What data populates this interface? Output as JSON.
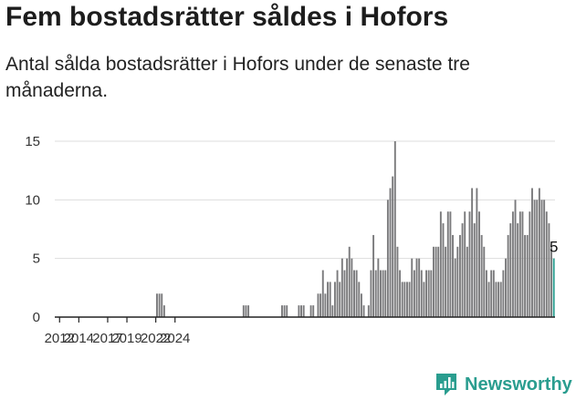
{
  "header": {
    "title": "Fem bostadsrätter såldes i Hofors",
    "subtitle": "Antal sålda bostadsrätter i Hofors under de senaste tre månaderna."
  },
  "brand": {
    "name": "Newsworthy",
    "logo_icon": "newsworthy-chart-icon"
  },
  "colors": {
    "bar": "#7a7a7c",
    "highlight": "#2a9d8f",
    "grid": "#dddddd",
    "axis": "#222222"
  },
  "chart_data": {
    "type": "bar",
    "title": "Fem bostadsrätter såldes i Hofors",
    "subtitle": "Antal sålda bostadsrätter i Hofors under de senaste tre månaderna.",
    "xlabel": "",
    "ylabel": "",
    "x_start": 2011.5,
    "x_step": 0.25,
    "x_tick_labels": [
      "2012",
      "2014",
      "2017",
      "2019",
      "2022",
      "2024"
    ],
    "x_tick_values": [
      2012,
      2014,
      2017,
      2019,
      2022,
      2024
    ],
    "y_ticks": [
      0,
      5,
      10,
      15
    ],
    "ylim": [
      0,
      15
    ],
    "grid": true,
    "legend": "none",
    "values": [
      0,
      0,
      0,
      0,
      0,
      0,
      0,
      0,
      0,
      0,
      0,
      0,
      0,
      0,
      0,
      0,
      0,
      0,
      0,
      0,
      0,
      0,
      0,
      0,
      0,
      0,
      0,
      0,
      0,
      0,
      0,
      0,
      0,
      0,
      0,
      0,
      0,
      0,
      0,
      0,
      0,
      0,
      2,
      2,
      2,
      1,
      0,
      0,
      0,
      0,
      0,
      0,
      0,
      0,
      0,
      0,
      0,
      0,
      0,
      0,
      0,
      0,
      0,
      0,
      0,
      0,
      0,
      0,
      0,
      0,
      0,
      0,
      0,
      0,
      0,
      0,
      0,
      0,
      1,
      1,
      1,
      0,
      0,
      0,
      0,
      0,
      0,
      0,
      0,
      0,
      0,
      0,
      0,
      0,
      1,
      1,
      1,
      0,
      0,
      0,
      0,
      1,
      1,
      1,
      0,
      0,
      1,
      1,
      0,
      2,
      2,
      4,
      2,
      3,
      3,
      1,
      3,
      4,
      3,
      5,
      4,
      5,
      6,
      5,
      4,
      4,
      3,
      2,
      1,
      0,
      1,
      4,
      7,
      4,
      5,
      4,
      4,
      4,
      10,
      11,
      12,
      15,
      6,
      4,
      3,
      3,
      3,
      3,
      5,
      4,
      5,
      5,
      4,
      3,
      4,
      4,
      4,
      6,
      6,
      6,
      9,
      8,
      6,
      9,
      9,
      7,
      5,
      6,
      7,
      8,
      9,
      6,
      9,
      11,
      8,
      11,
      9,
      7,
      6,
      4,
      3,
      4,
      4,
      3,
      3,
      3,
      4,
      5,
      7,
      8,
      9,
      10,
      8,
      9,
      9,
      7,
      7,
      9,
      11,
      10,
      10,
      11,
      10,
      10,
      9,
      8,
      6,
      5
    ],
    "highlight": {
      "label": "5",
      "value": 5
    }
  }
}
